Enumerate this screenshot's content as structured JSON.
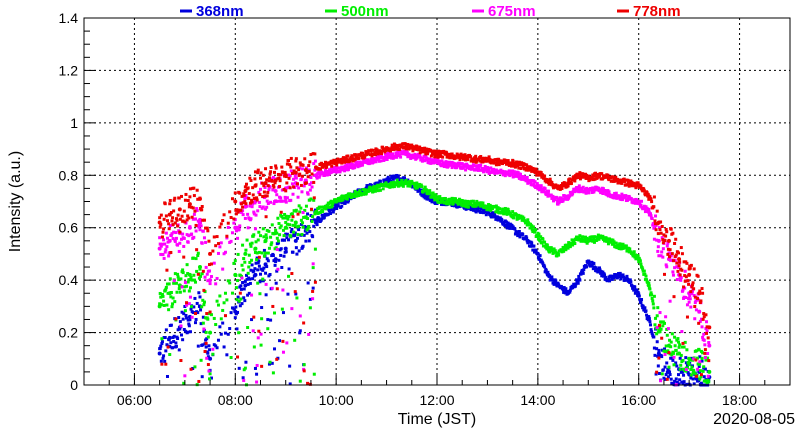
{
  "chart_data": {
    "type": "scatter",
    "title": "",
    "xlabel": "Time (JST)",
    "ylabel": "Intensity (a.u.)",
    "date_label": "2020-08-05",
    "x_unit": "hours JST",
    "xlim": [
      5.0,
      19.0
    ],
    "ylim": [
      0,
      1.4
    ],
    "x_ticks": [
      6,
      8,
      10,
      12,
      14,
      16,
      18
    ],
    "x_tick_labels": [
      "06:00",
      "08:00",
      "10:00",
      "12:00",
      "14:00",
      "16:00",
      "18:00"
    ],
    "y_ticks": [
      0,
      0.2,
      0.4,
      0.6,
      0.8,
      1,
      1.2,
      1.4
    ],
    "y_tick_labels": [
      "0",
      "0.2",
      "0.4",
      "0.6",
      "0.8",
      "1",
      "1.2",
      "1.4"
    ],
    "grid": true,
    "legend_position": "top",
    "series": [
      {
        "name": "368nm",
        "color": "#0000dd",
        "x": [
          6.5,
          6.7,
          6.9,
          7.1,
          7.3,
          7.5,
          8.0,
          8.2,
          8.4,
          8.6,
          8.8,
          9.0,
          9.2,
          9.4,
          9.6,
          9.8,
          10.0,
          10.2,
          10.4,
          10.6,
          10.8,
          11.0,
          11.2,
          11.4,
          11.6,
          11.8,
          12.0,
          12.2,
          12.4,
          12.6,
          12.8,
          13.0,
          13.2,
          13.4,
          13.6,
          13.8,
          14.0,
          14.2,
          14.4,
          14.6,
          14.8,
          15.0,
          15.2,
          15.4,
          15.6,
          15.8,
          16.0,
          16.2,
          16.4,
          16.6,
          16.8,
          17.0,
          17.2,
          17.4
        ],
        "y": [
          0.12,
          0.18,
          0.22,
          0.26,
          0.3,
          0.1,
          0.28,
          0.38,
          0.42,
          0.46,
          0.48,
          0.52,
          0.55,
          0.6,
          0.62,
          0.65,
          0.68,
          0.7,
          0.73,
          0.75,
          0.76,
          0.78,
          0.79,
          0.78,
          0.75,
          0.72,
          0.7,
          0.7,
          0.69,
          0.68,
          0.67,
          0.66,
          0.64,
          0.61,
          0.58,
          0.55,
          0.5,
          0.42,
          0.38,
          0.35,
          0.4,
          0.47,
          0.44,
          0.4,
          0.42,
          0.4,
          0.34,
          0.25,
          0.12,
          0.05,
          0.06,
          0.04,
          0.05,
          0.03
        ]
      },
      {
        "name": "500nm",
        "color": "#00ee00",
        "x": [
          6.5,
          6.7,
          6.9,
          7.1,
          7.3,
          7.5,
          8.0,
          8.2,
          8.4,
          8.6,
          8.8,
          9.0,
          9.2,
          9.4,
          9.6,
          9.8,
          10.0,
          10.2,
          10.4,
          10.6,
          10.8,
          11.0,
          11.2,
          11.4,
          11.6,
          11.8,
          12.0,
          12.2,
          12.4,
          12.6,
          12.8,
          13.0,
          13.2,
          13.4,
          13.6,
          13.8,
          14.0,
          14.2,
          14.4,
          14.6,
          14.8,
          15.0,
          15.2,
          15.4,
          15.6,
          15.8,
          16.0,
          16.2,
          16.4,
          16.6,
          16.8,
          17.0,
          17.2,
          17.4
        ],
        "y": [
          0.3,
          0.35,
          0.38,
          0.42,
          0.45,
          0.2,
          0.42,
          0.5,
          0.52,
          0.55,
          0.58,
          0.6,
          0.62,
          0.64,
          0.66,
          0.68,
          0.7,
          0.72,
          0.73,
          0.74,
          0.75,
          0.76,
          0.77,
          0.77,
          0.76,
          0.74,
          0.71,
          0.7,
          0.7,
          0.69,
          0.69,
          0.68,
          0.67,
          0.66,
          0.64,
          0.62,
          0.57,
          0.52,
          0.5,
          0.53,
          0.56,
          0.55,
          0.56,
          0.55,
          0.53,
          0.52,
          0.48,
          0.38,
          0.22,
          0.15,
          0.12,
          0.1,
          0.08,
          0.05
        ]
      },
      {
        "name": "675nm",
        "color": "#ff00ff",
        "x": [
          6.5,
          6.7,
          6.9,
          7.1,
          7.3,
          7.5,
          8.0,
          8.2,
          8.4,
          8.6,
          8.8,
          9.0,
          9.2,
          9.4,
          9.6,
          9.8,
          10.0,
          10.2,
          10.4,
          10.6,
          10.8,
          11.0,
          11.2,
          11.4,
          11.6,
          11.8,
          12.0,
          12.2,
          12.4,
          12.6,
          12.8,
          13.0,
          13.2,
          13.4,
          13.6,
          13.8,
          14.0,
          14.2,
          14.4,
          14.6,
          14.8,
          15.0,
          15.2,
          15.4,
          15.6,
          15.8,
          16.0,
          16.2,
          16.4,
          16.6,
          16.8,
          17.0,
          17.2,
          17.4
        ],
        "y": [
          0.52,
          0.55,
          0.58,
          0.6,
          0.63,
          0.4,
          0.6,
          0.68,
          0.7,
          0.72,
          0.74,
          0.75,
          0.77,
          0.78,
          0.8,
          0.81,
          0.82,
          0.83,
          0.84,
          0.85,
          0.86,
          0.87,
          0.88,
          0.88,
          0.87,
          0.86,
          0.85,
          0.84,
          0.84,
          0.83,
          0.83,
          0.82,
          0.81,
          0.81,
          0.8,
          0.78,
          0.76,
          0.73,
          0.7,
          0.72,
          0.75,
          0.74,
          0.75,
          0.73,
          0.72,
          0.71,
          0.7,
          0.66,
          0.55,
          0.48,
          0.42,
          0.35,
          0.28,
          0.15
        ]
      },
      {
        "name": "778nm",
        "color": "#ee0000",
        "x": [
          6.5,
          6.7,
          6.9,
          7.1,
          7.3,
          7.5,
          8.0,
          8.2,
          8.4,
          8.6,
          8.8,
          9.0,
          9.2,
          9.4,
          9.6,
          9.8,
          10.0,
          10.2,
          10.4,
          10.6,
          10.8,
          11.0,
          11.2,
          11.4,
          11.6,
          11.8,
          12.0,
          12.2,
          12.4,
          12.6,
          12.8,
          13.0,
          13.2,
          13.4,
          13.6,
          13.8,
          14.0,
          14.2,
          14.4,
          14.6,
          14.8,
          15.0,
          15.2,
          15.4,
          15.6,
          15.8,
          16.0,
          16.2,
          16.4,
          16.6,
          16.8,
          17.0,
          17.2,
          17.4
        ],
        "y": [
          0.62,
          0.65,
          0.67,
          0.69,
          0.71,
          0.5,
          0.7,
          0.74,
          0.76,
          0.77,
          0.78,
          0.8,
          0.81,
          0.82,
          0.83,
          0.84,
          0.85,
          0.86,
          0.87,
          0.88,
          0.89,
          0.9,
          0.91,
          0.91,
          0.9,
          0.89,
          0.88,
          0.88,
          0.87,
          0.87,
          0.86,
          0.86,
          0.85,
          0.85,
          0.84,
          0.83,
          0.81,
          0.78,
          0.75,
          0.77,
          0.8,
          0.79,
          0.8,
          0.79,
          0.78,
          0.77,
          0.76,
          0.72,
          0.62,
          0.55,
          0.48,
          0.42,
          0.35,
          0.22
        ]
      }
    ]
  }
}
